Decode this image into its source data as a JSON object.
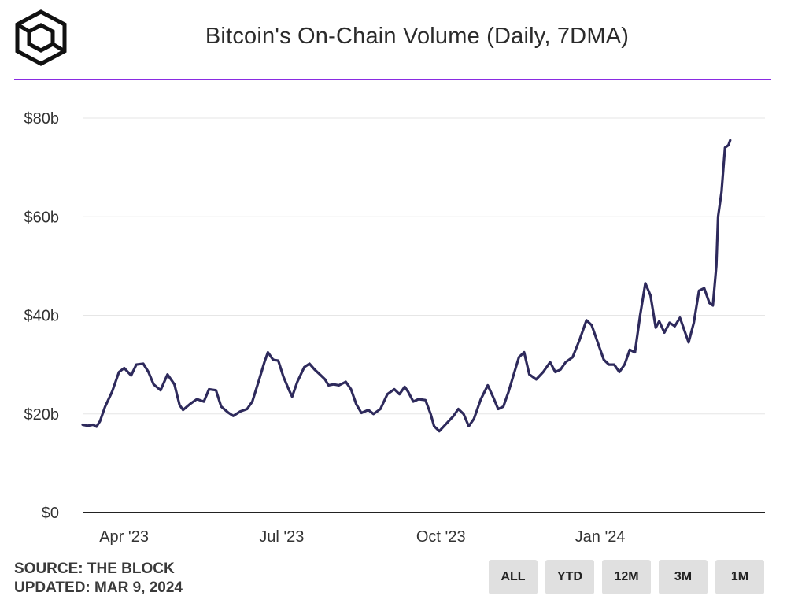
{
  "header": {
    "title": "Bitcoin's On-Chain Volume (Daily, 7DMA)"
  },
  "footer": {
    "source": "SOURCE: THE BLOCK",
    "updated": "UPDATED: MAR 9, 2024"
  },
  "range_buttons": [
    "ALL",
    "YTD",
    "12M",
    "3M",
    "1M"
  ],
  "colors": {
    "line": "#2e2a5c",
    "divider": "#8a2be2",
    "grid": "#e6e6e6",
    "button_bg": "#e0e0e0"
  },
  "chart_data": {
    "type": "line",
    "title": "Bitcoin's On-Chain Volume (Daily, 7DMA)",
    "ylim": [
      0,
      80
    ],
    "yticks": [
      0,
      20,
      40,
      60,
      80
    ],
    "ytick_labels": [
      "$0",
      "$20b",
      "$40b",
      "$60b",
      "$80b"
    ],
    "xticks": [
      {
        "date": "2023-04-01",
        "label": "Apr '23"
      },
      {
        "date": "2023-07-01",
        "label": "Jul '23"
      },
      {
        "date": "2023-10-01",
        "label": "Oct '23"
      },
      {
        "date": "2024-01-01",
        "label": "Jan '24"
      }
    ],
    "x_range": [
      "2023-03-09",
      "2024-03-09"
    ],
    "grid": true,
    "series": [
      {
        "values": [
          [
            "2023-03-09",
            17.8
          ],
          [
            "2023-03-12",
            17.6
          ],
          [
            "2023-03-15",
            17.8
          ],
          [
            "2023-03-17",
            17.4
          ],
          [
            "2023-03-19",
            18.5
          ],
          [
            "2023-03-22",
            21.5
          ],
          [
            "2023-03-26",
            24.5
          ],
          [
            "2023-03-30",
            28.5
          ],
          [
            "2023-04-02",
            29.3
          ],
          [
            "2023-04-06",
            27.8
          ],
          [
            "2023-04-09",
            30.0
          ],
          [
            "2023-04-13",
            30.2
          ],
          [
            "2023-04-16",
            28.5
          ],
          [
            "2023-04-19",
            26.0
          ],
          [
            "2023-04-23",
            24.8
          ],
          [
            "2023-04-27",
            28.0
          ],
          [
            "2023-05-01",
            26.0
          ],
          [
            "2023-05-04",
            21.8
          ],
          [
            "2023-05-06",
            20.8
          ],
          [
            "2023-05-10",
            22.0
          ],
          [
            "2023-05-14",
            23.0
          ],
          [
            "2023-05-18",
            22.5
          ],
          [
            "2023-05-21",
            25.0
          ],
          [
            "2023-05-25",
            24.8
          ],
          [
            "2023-05-28",
            21.5
          ],
          [
            "2023-06-01",
            20.3
          ],
          [
            "2023-06-04",
            19.6
          ],
          [
            "2023-06-08",
            20.5
          ],
          [
            "2023-06-12",
            21.0
          ],
          [
            "2023-06-15",
            22.5
          ],
          [
            "2023-06-19",
            27.0
          ],
          [
            "2023-06-22",
            30.5
          ],
          [
            "2023-06-24",
            32.5
          ],
          [
            "2023-06-27",
            31.0
          ],
          [
            "2023-06-30",
            30.8
          ],
          [
            "2023-07-03",
            27.5
          ],
          [
            "2023-07-06",
            25.0
          ],
          [
            "2023-07-08",
            23.5
          ],
          [
            "2023-07-11",
            26.5
          ],
          [
            "2023-07-15",
            29.5
          ],
          [
            "2023-07-18",
            30.2
          ],
          [
            "2023-07-21",
            29.0
          ],
          [
            "2023-07-24",
            28.0
          ],
          [
            "2023-07-27",
            27.0
          ],
          [
            "2023-07-29",
            25.8
          ],
          [
            "2023-08-01",
            26.0
          ],
          [
            "2023-08-04",
            25.8
          ],
          [
            "2023-08-08",
            26.5
          ],
          [
            "2023-08-11",
            25.0
          ],
          [
            "2023-08-14",
            22.0
          ],
          [
            "2023-08-17",
            20.2
          ],
          [
            "2023-08-21",
            20.8
          ],
          [
            "2023-08-24",
            20.0
          ],
          [
            "2023-08-28",
            21.0
          ],
          [
            "2023-09-01",
            24.0
          ],
          [
            "2023-09-05",
            25.0
          ],
          [
            "2023-09-08",
            24.0
          ],
          [
            "2023-09-11",
            25.5
          ],
          [
            "2023-09-13",
            24.5
          ],
          [
            "2023-09-16",
            22.5
          ],
          [
            "2023-09-19",
            23.0
          ],
          [
            "2023-09-23",
            22.8
          ],
          [
            "2023-09-26",
            20.0
          ],
          [
            "2023-09-28",
            17.5
          ],
          [
            "2023-10-01",
            16.5
          ],
          [
            "2023-10-05",
            18.0
          ],
          [
            "2023-10-09",
            19.5
          ],
          [
            "2023-10-12",
            21.0
          ],
          [
            "2023-10-15",
            20.0
          ],
          [
            "2023-10-18",
            17.5
          ],
          [
            "2023-10-21",
            19.0
          ],
          [
            "2023-10-25",
            23.0
          ],
          [
            "2023-10-29",
            25.8
          ],
          [
            "2023-11-01",
            23.5
          ],
          [
            "2023-11-04",
            21.0
          ],
          [
            "2023-11-07",
            21.5
          ],
          [
            "2023-11-10",
            24.5
          ],
          [
            "2023-11-13",
            28.0
          ],
          [
            "2023-11-16",
            31.5
          ],
          [
            "2023-11-19",
            32.5
          ],
          [
            "2023-11-22",
            28.0
          ],
          [
            "2023-11-26",
            27.0
          ],
          [
            "2023-11-30",
            28.5
          ],
          [
            "2023-12-04",
            30.5
          ],
          [
            "2023-12-07",
            28.5
          ],
          [
            "2023-12-10",
            29.0
          ],
          [
            "2023-12-13",
            30.5
          ],
          [
            "2023-12-17",
            31.5
          ],
          [
            "2023-12-21",
            35.0
          ],
          [
            "2023-12-25",
            39.0
          ],
          [
            "2023-12-28",
            38.0
          ],
          [
            "2024-01-01",
            34.0
          ],
          [
            "2024-01-04",
            31.0
          ],
          [
            "2024-01-07",
            30.0
          ],
          [
            "2024-01-10",
            30.0
          ],
          [
            "2024-01-13",
            28.5
          ],
          [
            "2024-01-16",
            30.0
          ],
          [
            "2024-01-19",
            33.0
          ],
          [
            "2024-01-22",
            32.5
          ],
          [
            "2024-01-25",
            40.0
          ],
          [
            "2024-01-28",
            46.5
          ],
          [
            "2024-01-31",
            44.0
          ],
          [
            "2024-02-03",
            37.5
          ],
          [
            "2024-02-05",
            38.8
          ],
          [
            "2024-02-08",
            36.5
          ],
          [
            "2024-02-11",
            38.5
          ],
          [
            "2024-02-14",
            37.8
          ],
          [
            "2024-02-17",
            39.5
          ],
          [
            "2024-02-19",
            37.5
          ],
          [
            "2024-02-22",
            34.5
          ],
          [
            "2024-02-25",
            38.5
          ],
          [
            "2024-02-28",
            45.0
          ],
          [
            "2024-03-02",
            45.5
          ],
          [
            "2024-03-05",
            42.5
          ],
          [
            "2024-03-07",
            42.0
          ],
          [
            "2024-03-09",
            50.0
          ],
          [
            "2024-03-10",
            60.0
          ],
          [
            "2024-03-12",
            65.0
          ],
          [
            "2024-03-14",
            74.0
          ],
          [
            "2024-03-16",
            74.5
          ],
          [
            "2024-03-17",
            75.5
          ]
        ]
      }
    ]
  }
}
